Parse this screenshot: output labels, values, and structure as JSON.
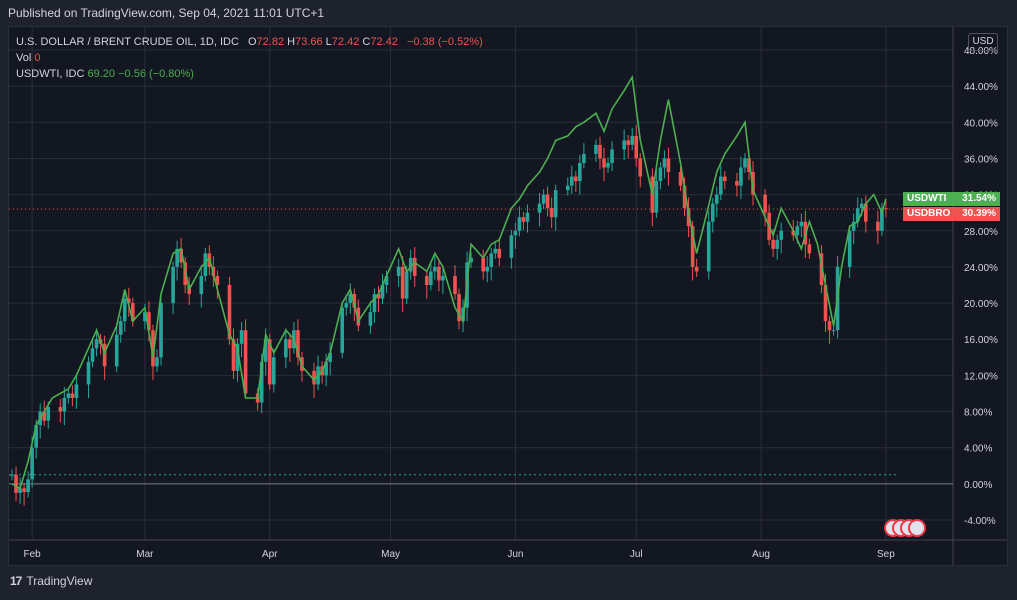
{
  "header": {
    "published": "Published on TradingView.com, Sep 04, 2021 11:01 UTC+1"
  },
  "legend": {
    "main_title": "U.S. DOLLAR / BRENT CRUDE OIL, 1D, IDC",
    "o_label": "O",
    "o_value": "72.82",
    "h_label": "H",
    "h_value": "73.66",
    "l_label": "L",
    "l_value": "72.42",
    "c_label": "C",
    "c_value": "72.42",
    "change": "−0.38 (−0.52%)",
    "vol_label": "Vol",
    "vol_value": "0",
    "compare_name": "USDWTI, IDC",
    "compare_value": "69.20",
    "compare_change": "−0.56 (−0.80%)"
  },
  "currency_button": "USD",
  "price_labels": [
    {
      "name": "USDWTI",
      "value": "31.54%",
      "color": "#4caf50"
    },
    {
      "name": "USDBRO",
      "value": "30.39%",
      "color": "#ef5350"
    }
  ],
  "footer": {
    "brand": "TradingView",
    "logo_text": "17"
  },
  "colors": {
    "up": "#26a69a",
    "down": "#ef5350",
    "compare_line": "#4caf50",
    "grid": "#2a2e39",
    "axis_text": "#d1d4dc",
    "background": "#131722"
  },
  "chart_data": {
    "type": "candlestick",
    "title": "U.S. DOLLAR / BRENT CRUDE OIL, 1D, IDC",
    "y_unit": "%",
    "ylim": [
      -6,
      48
    ],
    "y_ticks": [
      "48.00%",
      "44.00%",
      "40.00%",
      "36.00%",
      "32.00%",
      "28.00%",
      "24.00%",
      "20.00%",
      "16.00%",
      "12.00%",
      "8.00%",
      "4.00%",
      "0.00%",
      "-4.00%"
    ],
    "x_ticks": [
      "Feb",
      "Mar",
      "Apr",
      "May",
      "Jun",
      "Jul",
      "Aug",
      "Sep"
    ],
    "x_tick_days": [
      5,
      33,
      64,
      94,
      125,
      155,
      186,
      217
    ],
    "x_range_days": [
      0,
      220
    ],
    "grid": true,
    "series": [
      {
        "name": "USDBRO",
        "type": "candlestick",
        "points": [
          [
            0,
            1.0
          ],
          [
            1,
            -1.0
          ],
          [
            2,
            -0.5
          ],
          [
            3,
            -0.9
          ],
          [
            4,
            0.5
          ],
          [
            5,
            4.0
          ],
          [
            6,
            6.5
          ],
          [
            7,
            8.0
          ],
          [
            8,
            7.0
          ],
          [
            9,
            8.5
          ],
          [
            12,
            8.0
          ],
          [
            13,
            9.5
          ],
          [
            14,
            10.0
          ],
          [
            15,
            9.5
          ],
          [
            16,
            11.0
          ],
          [
            19,
            13.5
          ],
          [
            20,
            15.0
          ],
          [
            21,
            16.0
          ],
          [
            22,
            15.5
          ],
          [
            23,
            13.0
          ],
          [
            26,
            16.5
          ],
          [
            27,
            18.0
          ],
          [
            28,
            20.5
          ],
          [
            29,
            20.0
          ],
          [
            30,
            18.0
          ],
          [
            33,
            19.0
          ],
          [
            34,
            17.0
          ],
          [
            35,
            13.0
          ],
          [
            36,
            14.0
          ],
          [
            37,
            20.0
          ],
          [
            40,
            24.0
          ],
          [
            41,
            26.0
          ],
          [
            42,
            24.5
          ],
          [
            43,
            22.0
          ],
          [
            44,
            21.0
          ],
          [
            47,
            23.0
          ],
          [
            48,
            25.5
          ],
          [
            49,
            24.0
          ],
          [
            50,
            23.0
          ],
          [
            51,
            22.0
          ],
          [
            54,
            16.0
          ],
          [
            55,
            12.5
          ],
          [
            56,
            15.5
          ],
          [
            57,
            17.0
          ],
          [
            58,
            10.0
          ],
          [
            61,
            9.0
          ],
          [
            62,
            13.5
          ],
          [
            63,
            16.0
          ],
          [
            64,
            11.0
          ],
          [
            65,
            14.0
          ],
          [
            68,
            16.0
          ],
          [
            69,
            15.0
          ],
          [
            70,
            17.0
          ],
          [
            71,
            14.0
          ],
          [
            72,
            12.5
          ],
          [
            75,
            11.0
          ],
          [
            76,
            13.0
          ],
          [
            77,
            12.0
          ],
          [
            78,
            13.5
          ],
          [
            79,
            14.5
          ],
          [
            82,
            19.5
          ],
          [
            83,
            20.0
          ],
          [
            84,
            21.0
          ],
          [
            85,
            19.5
          ],
          [
            86,
            17.5
          ],
          [
            89,
            19.0
          ],
          [
            90,
            21.0
          ],
          [
            91,
            20.5
          ],
          [
            92,
            22.0
          ],
          [
            93,
            23.0
          ],
          [
            96,
            24.0
          ],
          [
            97,
            20.5
          ],
          [
            98,
            23.5
          ],
          [
            99,
            25.0
          ],
          [
            100,
            23.0
          ],
          [
            103,
            22.0
          ],
          [
            104,
            23.5
          ],
          [
            105,
            24.0
          ],
          [
            106,
            22.5
          ],
          [
            107,
            23.0
          ],
          [
            110,
            21.0
          ],
          [
            111,
            18.0
          ],
          [
            112,
            19.5
          ],
          [
            113,
            24.5
          ],
          [
            114,
            25.0
          ],
          [
            117,
            23.5
          ],
          [
            118,
            24.0
          ],
          [
            119,
            25.5
          ],
          [
            120,
            26.0
          ],
          [
            121,
            25.0
          ],
          [
            124,
            27.5
          ],
          [
            125,
            28.0
          ],
          [
            126,
            29.5
          ],
          [
            127,
            29.0
          ],
          [
            128,
            30.0
          ],
          [
            131,
            31.0
          ],
          [
            132,
            32.0
          ],
          [
            133,
            30.5
          ],
          [
            134,
            29.5
          ],
          [
            135,
            32.5
          ],
          [
            138,
            33.0
          ],
          [
            139,
            34.0
          ],
          [
            140,
            33.5
          ],
          [
            141,
            35.5
          ],
          [
            142,
            36.5
          ],
          [
            145,
            37.5
          ],
          [
            146,
            36.0
          ],
          [
            147,
            35.0
          ],
          [
            148,
            35.5
          ],
          [
            149,
            37.0
          ],
          [
            152,
            38.0
          ],
          [
            153,
            37.5
          ],
          [
            154,
            38.5
          ],
          [
            155,
            36.0
          ],
          [
            156,
            34.0
          ],
          [
            159,
            30.0
          ],
          [
            160,
            33.5
          ],
          [
            161,
            35.0
          ],
          [
            162,
            36.0
          ],
          [
            163,
            34.5
          ],
          [
            166,
            33.0
          ],
          [
            167,
            30.5
          ],
          [
            168,
            28.5
          ],
          [
            169,
            24.0
          ],
          [
            170,
            23.5
          ],
          [
            173,
            29.0
          ],
          [
            174,
            31.0
          ],
          [
            175,
            32.0
          ],
          [
            176,
            34.0
          ],
          [
            177,
            33.5
          ],
          [
            180,
            33.0
          ],
          [
            181,
            35.0
          ],
          [
            182,
            36.0
          ],
          [
            183,
            34.5
          ],
          [
            184,
            32.0
          ],
          [
            187,
            30.0
          ],
          [
            188,
            27.0
          ],
          [
            189,
            26.0
          ],
          [
            190,
            27.0
          ],
          [
            191,
            28.0
          ],
          [
            194,
            27.5
          ],
          [
            195,
            28.5
          ],
          [
            196,
            29.0
          ],
          [
            197,
            26.5
          ],
          [
            198,
            25.5
          ],
          [
            201,
            22.0
          ],
          [
            202,
            18.0
          ],
          [
            203,
            17.0
          ],
          [
            204,
            17.0
          ],
          [
            205,
            24.0
          ],
          [
            208,
            28.0
          ],
          [
            209,
            29.0
          ],
          [
            210,
            30.5
          ],
          [
            211,
            31.0
          ],
          [
            212,
            29.0
          ],
          [
            215,
            28.0
          ],
          [
            216,
            30.5
          ],
          [
            217,
            30.39
          ]
        ]
      },
      {
        "name": "USDWTI",
        "type": "line",
        "points": [
          [
            0,
            0.0
          ],
          [
            2,
            -0.5
          ],
          [
            4,
            2.5
          ],
          [
            6,
            6.5
          ],
          [
            8,
            8.0
          ],
          [
            10,
            9.5
          ],
          [
            14,
            10.5
          ],
          [
            16,
            12.0
          ],
          [
            19,
            15.0
          ],
          [
            21,
            17.0
          ],
          [
            23,
            14.5
          ],
          [
            26,
            17.5
          ],
          [
            28,
            21.5
          ],
          [
            30,
            18.0
          ],
          [
            33,
            19.5
          ],
          [
            35,
            14.0
          ],
          [
            37,
            21.0
          ],
          [
            40,
            25.5
          ],
          [
            42,
            26.0
          ],
          [
            44,
            21.5
          ],
          [
            47,
            24.0
          ],
          [
            49,
            25.0
          ],
          [
            51,
            21.5
          ],
          [
            54,
            16.5
          ],
          [
            56,
            15.0
          ],
          [
            58,
            9.5
          ],
          [
            61,
            9.5
          ],
          [
            63,
            16.5
          ],
          [
            65,
            14.5
          ],
          [
            68,
            17.0
          ],
          [
            70,
            16.0
          ],
          [
            72,
            13.0
          ],
          [
            75,
            11.5
          ],
          [
            77,
            12.5
          ],
          [
            79,
            14.5
          ],
          [
            82,
            20.0
          ],
          [
            84,
            21.5
          ],
          [
            86,
            18.0
          ],
          [
            89,
            20.0
          ],
          [
            91,
            21.0
          ],
          [
            93,
            23.0
          ],
          [
            96,
            26.0
          ],
          [
            98,
            23.5
          ],
          [
            100,
            24.5
          ],
          [
            103,
            23.5
          ],
          [
            105,
            25.5
          ],
          [
            107,
            24.0
          ],
          [
            110,
            19.5
          ],
          [
            112,
            18.0
          ],
          [
            114,
            26.5
          ],
          [
            117,
            25.0
          ],
          [
            119,
            26.5
          ],
          [
            121,
            27.0
          ],
          [
            124,
            30.5
          ],
          [
            126,
            31.5
          ],
          [
            128,
            33.0
          ],
          [
            131,
            34.5
          ],
          [
            133,
            36.0
          ],
          [
            135,
            38.0
          ],
          [
            138,
            38.5
          ],
          [
            140,
            39.5
          ],
          [
            142,
            40.0
          ],
          [
            145,
            41.0
          ],
          [
            147,
            39.0
          ],
          [
            149,
            41.5
          ],
          [
            152,
            43.5
          ],
          [
            154,
            45.0
          ],
          [
            156,
            38.0
          ],
          [
            159,
            32.0
          ],
          [
            161,
            38.0
          ],
          [
            163,
            42.5
          ],
          [
            166,
            35.5
          ],
          [
            168,
            30.0
          ],
          [
            170,
            25.5
          ],
          [
            172,
            29.0
          ],
          [
            175,
            34.5
          ],
          [
            177,
            36.5
          ],
          [
            180,
            38.5
          ],
          [
            182,
            40.0
          ],
          [
            184,
            32.5
          ],
          [
            187,
            29.5
          ],
          [
            189,
            27.5
          ],
          [
            191,
            30.5
          ],
          [
            194,
            28.0
          ],
          [
            196,
            26.0
          ],
          [
            198,
            29.0
          ],
          [
            200,
            26.5
          ],
          [
            202,
            22.0
          ],
          [
            204,
            17.5
          ],
          [
            206,
            24.0
          ],
          [
            208,
            28.5
          ],
          [
            210,
            29.0
          ],
          [
            212,
            31.0
          ],
          [
            214,
            32.0
          ],
          [
            216,
            30.0
          ],
          [
            217,
            31.54
          ]
        ]
      }
    ],
    "reference_lines": [
      {
        "value": 30.39
      },
      {
        "value": 1.0
      }
    ]
  }
}
